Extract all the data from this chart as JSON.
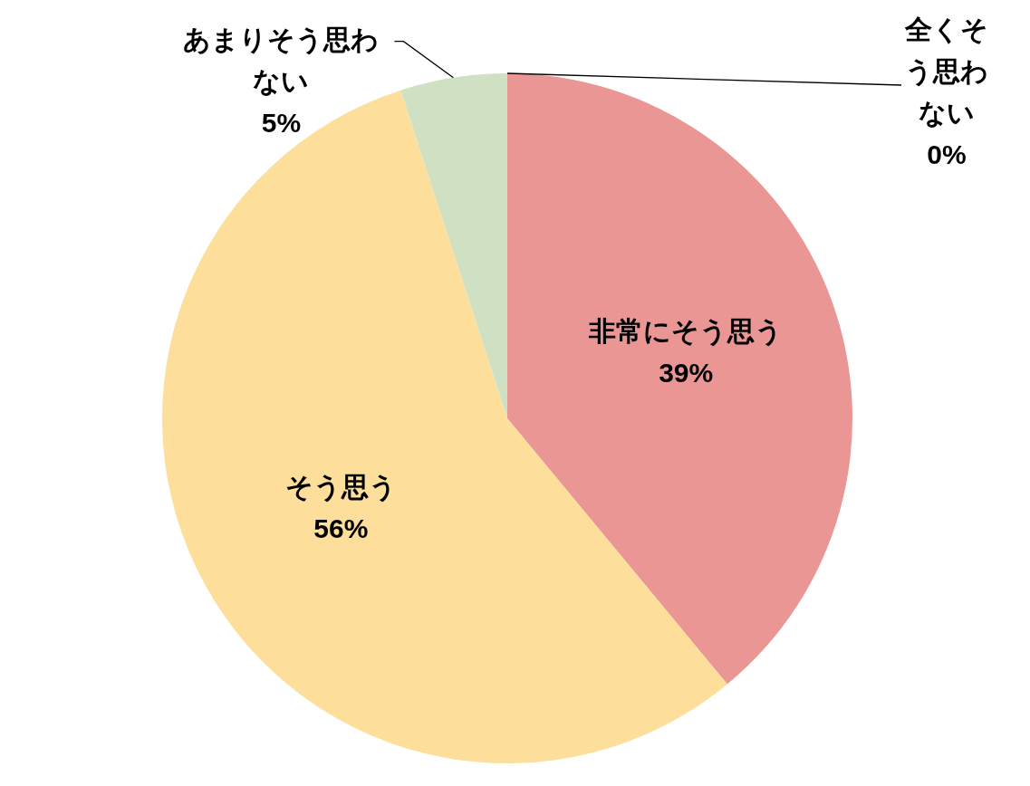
{
  "chart_data": {
    "type": "pie",
    "categories": [
      "非常にそう思う",
      "そう思う",
      "あまりそう思わない",
      "全くそう思わない"
    ],
    "values": [
      39,
      56,
      5,
      0
    ],
    "colors": [
      "#ea9694",
      "#fddf9b",
      "#d0e1c3",
      "#b4c7e7"
    ],
    "value_labels": [
      "39%",
      "56%",
      "5%",
      "0%"
    ]
  }
}
